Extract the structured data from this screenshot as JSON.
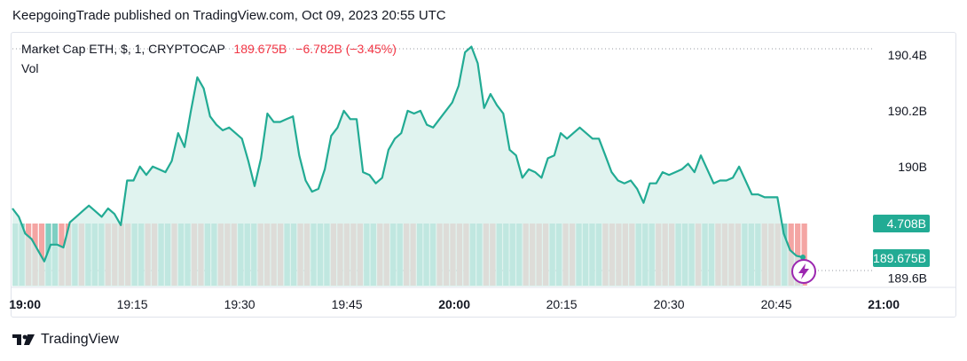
{
  "header": {
    "published": "KeepgoingTrade published on TradingView.com, Oct 09, 2023 20:55 UTC"
  },
  "legend": {
    "symbol": "Market Cap ETH, $, 1, CRYPTOCAP",
    "value": "189.675B",
    "change": "−6.782B (−3.45%)",
    "vol_label": "Vol"
  },
  "price_badges": {
    "volume": "4.708B",
    "last": "189.675B"
  },
  "footer": {
    "brand": "TradingView"
  },
  "colors": {
    "line": "#22ab94",
    "fill": "#d6efe9",
    "vol_up": "#7fcfc2",
    "vol_down": "#f4a5a3",
    "badge": "#22ab94",
    "text_down": "#f23645"
  },
  "chart_data": {
    "type": "area",
    "title": "Market Cap ETH, $, 1, CRYPTOCAP",
    "xlabel": "",
    "ylabel": "",
    "x_ticks": [
      "19:00",
      "19:15",
      "19:30",
      "19:45",
      "20:00",
      "20:15",
      "20:30",
      "20:45",
      "21:00"
    ],
    "y_ticks": [
      "190.4B",
      "190.2B",
      "190B",
      "189.6B"
    ],
    "ylim": [
      189.57,
      190.47
    ],
    "x_start": "18:58",
    "x_end": "20:58",
    "series": [
      {
        "values": [
          189.85,
          189.82,
          189.76,
          189.74,
          189.7,
          189.66,
          189.72,
          189.72,
          189.71,
          189.8,
          189.82,
          189.84,
          189.86,
          189.84,
          189.82,
          189.85,
          189.83,
          189.79,
          189.95,
          189.95,
          190.0,
          189.97,
          190.0,
          189.99,
          189.98,
          190.02,
          190.12,
          190.07,
          190.2,
          190.32,
          190.28,
          190.18,
          190.15,
          190.13,
          190.14,
          190.12,
          190.1,
          190.02,
          189.93,
          190.03,
          190.19,
          190.16,
          190.16,
          190.17,
          190.18,
          190.04,
          189.95,
          189.91,
          189.92,
          189.99,
          190.11,
          190.14,
          190.2,
          190.17,
          190.17,
          189.98,
          189.97,
          189.94,
          189.96,
          190.06,
          190.1,
          190.12,
          190.2,
          190.19,
          190.2,
          190.15,
          190.14,
          190.17,
          190.2,
          190.23,
          190.29,
          190.41,
          190.43,
          190.37,
          190.21,
          190.26,
          190.22,
          190.19,
          190.06,
          190.04,
          189.96,
          189.99,
          189.98,
          189.96,
          190.03,
          190.04,
          190.12,
          190.1,
          190.12,
          190.14,
          190.12,
          190.1,
          190.1,
          190.04,
          189.98,
          189.95,
          189.94,
          189.95,
          189.92,
          189.87,
          189.94,
          189.94,
          189.98,
          189.97,
          189.98,
          189.99,
          190.01,
          189.98,
          190.04,
          189.99,
          189.94,
          189.95,
          189.95,
          189.96,
          190.0,
          189.95,
          189.9,
          189.9,
          189.89,
          189.89,
          189.89,
          189.76,
          189.7,
          189.68,
          189.675
        ]
      }
    ],
    "volume": {
      "last": "4.708B",
      "bars_direction": "uuddduudduduuudddduudduuduudduuddduuudddduudduuuddddduudduudduuuddddduudduuuudddduudduuuuddddduuuddduuuduudddduuuddduddd"
    },
    "last_value": "189.675B"
  }
}
